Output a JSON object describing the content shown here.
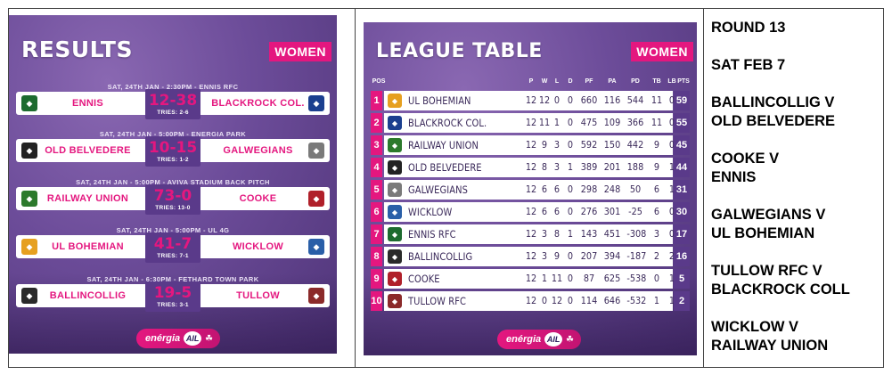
{
  "results": {
    "title": "RESULTS",
    "badge": "WOMEN",
    "matches": [
      {
        "meta": "SAT, 24TH JAN - 2:30PM - ENNIS RFC",
        "home": "ENNIS",
        "score": "12-38",
        "tries": "TRIES: 2-6",
        "away": "BLACKROCK COL.",
        "home_color": "#1d6b2f",
        "away_color": "#1b3f8f"
      },
      {
        "meta": "SAT, 24TH JAN - 5:00PM - ENERGIA PARK",
        "home": "OLD BELVEDERE",
        "score": "10-15",
        "tries": "TRIES: 1-2",
        "away": "GALWEGIANS",
        "home_color": "#222222",
        "away_color": "#7a7a7a"
      },
      {
        "meta": "SAT, 24TH JAN - 5:00PM - AVIVA STADIUM BACK PITCH",
        "home": "RAILWAY UNION",
        "score": "73-0",
        "tries": "TRIES: 13-0",
        "away": "COOKE",
        "home_color": "#2c7a2c",
        "away_color": "#b0202a"
      },
      {
        "meta": "SAT, 24TH JAN - 5:00PM - UL 4G",
        "home": "UL BOHEMIAN",
        "score": "41-7",
        "tries": "TRIES: 7-1",
        "away": "WICKLOW",
        "home_color": "#e6a020",
        "away_color": "#2a5fa8"
      },
      {
        "meta": "SAT, 24TH JAN - 6:30PM - FETHARD TOWN PARK",
        "home": "BALLINCOLLIG",
        "score": "19-5",
        "tries": "TRIES: 3-1",
        "away": "TULLOW",
        "home_color": "#2a2a2a",
        "away_color": "#8b2a2a"
      }
    ]
  },
  "league": {
    "title": "LEAGUE TABLE",
    "badge": "WOMEN",
    "columns": [
      "POS",
      "P",
      "W",
      "L",
      "D",
      "PF",
      "PA",
      "PD",
      "TB",
      "LB",
      "PTS"
    ],
    "rows": [
      {
        "pos": "1",
        "team": "UL BOHEMIAN",
        "p": "12",
        "w": "12",
        "l": "0",
        "d": "0",
        "pf": "660",
        "pa": "116",
        "pd": "544",
        "tb": "11",
        "lb": "0",
        "pts": "59",
        "color": "#e6a020"
      },
      {
        "pos": "2",
        "team": "BLACKROCK COL.",
        "p": "12",
        "w": "11",
        "l": "1",
        "d": "0",
        "pf": "475",
        "pa": "109",
        "pd": "366",
        "tb": "11",
        "lb": "0",
        "pts": "55",
        "color": "#1b3f8f"
      },
      {
        "pos": "3",
        "team": "RAILWAY UNION",
        "p": "12",
        "w": "9",
        "l": "3",
        "d": "0",
        "pf": "592",
        "pa": "150",
        "pd": "442",
        "tb": "9",
        "lb": "0",
        "pts": "45",
        "color": "#2c7a2c"
      },
      {
        "pos": "4",
        "team": "OLD BELVEDERE",
        "p": "12",
        "w": "8",
        "l": "3",
        "d": "1",
        "pf": "389",
        "pa": "201",
        "pd": "188",
        "tb": "9",
        "lb": "1",
        "pts": "44",
        "color": "#222222"
      },
      {
        "pos": "5",
        "team": "GALWEGIANS",
        "p": "12",
        "w": "6",
        "l": "6",
        "d": "0",
        "pf": "298",
        "pa": "248",
        "pd": "50",
        "tb": "6",
        "lb": "1",
        "pts": "31",
        "color": "#7a7a7a"
      },
      {
        "pos": "6",
        "team": "WICKLOW",
        "p": "12",
        "w": "6",
        "l": "6",
        "d": "0",
        "pf": "276",
        "pa": "301",
        "pd": "-25",
        "tb": "6",
        "lb": "0",
        "pts": "30",
        "color": "#2a5fa8"
      },
      {
        "pos": "7",
        "team": "ENNIS RFC",
        "p": "12",
        "w": "3",
        "l": "8",
        "d": "1",
        "pf": "143",
        "pa": "451",
        "pd": "-308",
        "tb": "3",
        "lb": "0",
        "pts": "17",
        "color": "#1d6b2f"
      },
      {
        "pos": "8",
        "team": "BALLINCOLLIG",
        "p": "12",
        "w": "3",
        "l": "9",
        "d": "0",
        "pf": "207",
        "pa": "394",
        "pd": "-187",
        "tb": "2",
        "lb": "2",
        "pts": "16",
        "color": "#2a2a2a"
      },
      {
        "pos": "9",
        "team": "COOKE",
        "p": "12",
        "w": "1",
        "l": "11",
        "d": "0",
        "pf": "87",
        "pa": "625",
        "pd": "-538",
        "tb": "0",
        "lb": "1",
        "pts": "5",
        "color": "#b0202a"
      },
      {
        "pos": "10",
        "team": "TULLOW RFC",
        "p": "12",
        "w": "0",
        "l": "12",
        "d": "0",
        "pf": "114",
        "pa": "646",
        "pd": "-532",
        "tb": "1",
        "lb": "1",
        "pts": "2",
        "color": "#8b2a2a"
      }
    ]
  },
  "sponsor": {
    "name": "enérgia",
    "ail": "AIL",
    "accent": "#e4177f"
  },
  "fixtures": {
    "round": "ROUND 13",
    "date": "SAT FEB 7",
    "games": [
      {
        "home": "BALLINCOLLIG V",
        "away": "OLD BELVEDERE"
      },
      {
        "home": "COOKE V",
        "away": "ENNIS"
      },
      {
        "home": "GALWEGIANS V",
        "away": "UL BOHEMIAN"
      },
      {
        "home": "TULLOW RFC V",
        "away": "BLACKROCK COLL"
      },
      {
        "home": "WICKLOW V",
        "away": "RAILWAY UNION"
      }
    ]
  }
}
